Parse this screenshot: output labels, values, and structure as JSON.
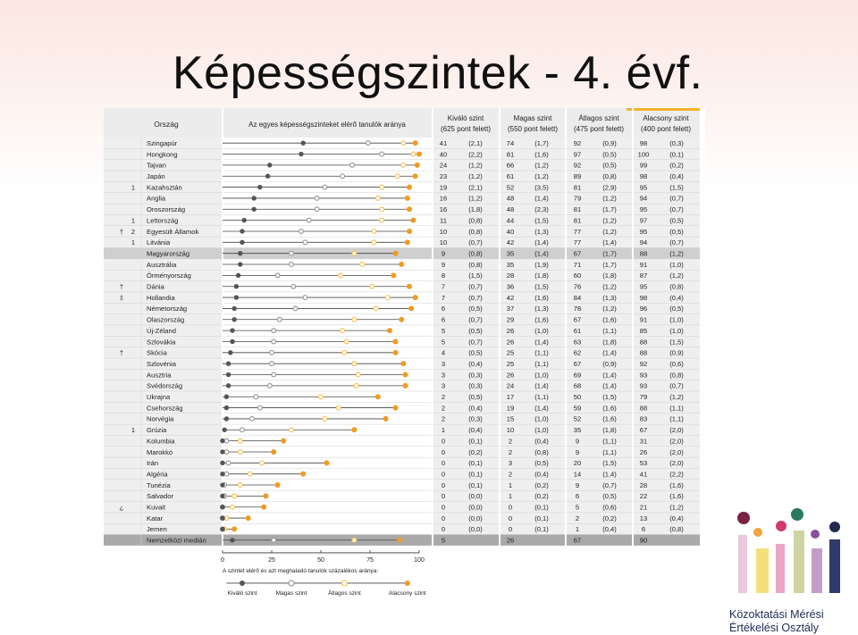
{
  "title": "Képességszintek - 4. évf.",
  "logo": {
    "line1": "Közoktatási Mérési",
    "line2": "Értékelési Osztály"
  },
  "headers": {
    "country": "Ország",
    "chart": "Az egyes képességszinteket elérő tanulók aránya",
    "kivalo": [
      "Kiváló szint",
      "(625 pont felett)"
    ],
    "magas": [
      "Magas szint",
      "(550 pont felett)"
    ],
    "atlagos": [
      "Átlagos szint",
      "(475 pont felett)"
    ],
    "alacsony": [
      "Alacsony szint",
      "(400 pont felett)"
    ]
  },
  "legend": {
    "title": "A szintet elérő és azt meghaladó tanulók százalékos aránya:",
    "items": [
      "Kiváló szint",
      "Magas szint",
      "Átlagos szint",
      "Alacsony szint"
    ]
  },
  "colors": {
    "kivalo": "#555555",
    "magas": "#9a9a9a",
    "atlagos": "#f6c35a",
    "alacsony": "#f39a1e",
    "highlight": "#cfcfcf",
    "header_bar": "#f5b32b"
  },
  "chart_data": {
    "type": "scatter",
    "xlim": [
      0,
      100
    ],
    "xticks": [
      "0",
      "25",
      "50",
      "75",
      "100"
    ],
    "series": [
      {
        "name": "Kiváló szint",
        "key": "k"
      },
      {
        "name": "Magas szint",
        "key": "m"
      },
      {
        "name": "Átlagos szint",
        "key": "a"
      },
      {
        "name": "Alacsony szint",
        "key": "l"
      }
    ],
    "rows": [
      {
        "mark1": "",
        "mark2": "",
        "country": "Szingapúr",
        "k": 41,
        "kse": "(2,1)",
        "m": 74,
        "mse": "(1,7)",
        "a": 92,
        "ase": "(0,9)",
        "l": 98,
        "lse": "(0,3)"
      },
      {
        "mark1": "",
        "mark2": "",
        "country": "Hongkong",
        "k": 40,
        "kse": "(2,2)",
        "m": 81,
        "mse": "(1,6)",
        "a": 97,
        "ase": "(0,5)",
        "l": 100,
        "lse": "(0,1)"
      },
      {
        "mark1": "",
        "mark2": "",
        "country": "Tajvan",
        "k": 24,
        "kse": "(1,2)",
        "m": 66,
        "mse": "(1,2)",
        "a": 92,
        "ase": "(0,5)",
        "l": 99,
        "lse": "(0,2)"
      },
      {
        "mark1": "",
        "mark2": "",
        "country": "Japán",
        "k": 23,
        "kse": "(1,2)",
        "m": 61,
        "mse": "(1,2)",
        "a": 89,
        "ase": "(0,8)",
        "l": 98,
        "lse": "(0,4)"
      },
      {
        "mark1": "1",
        "mark2": "",
        "country": "Kazahsztán",
        "k": 19,
        "kse": "(2,1)",
        "m": 52,
        "mse": "(3,5)",
        "a": 81,
        "ase": "(2,9)",
        "l": 95,
        "lse": "(1,5)"
      },
      {
        "mark1": "",
        "mark2": "",
        "country": "Anglia",
        "k": 16,
        "kse": "(1,2)",
        "m": 48,
        "mse": "(1,4)",
        "a": 79,
        "ase": "(1,2)",
        "l": 94,
        "lse": "(0,7)"
      },
      {
        "mark1": "",
        "mark2": "",
        "country": "Oroszország",
        "k": 16,
        "kse": "(1,8)",
        "m": 48,
        "mse": "(2,3)",
        "a": 81,
        "ase": "(1,7)",
        "l": 95,
        "lse": "(0,7)"
      },
      {
        "mark1": "1",
        "mark2": "",
        "country": "Lettország",
        "k": 11,
        "kse": "(0,8)",
        "m": 44,
        "mse": "(1,5)",
        "a": 81,
        "ase": "(1,2)",
        "l": 97,
        "lse": "(0,5)"
      },
      {
        "mark1": "2",
        "mark2": "†",
        "country": "Egyesült Államok",
        "k": 10,
        "kse": "(0,8)",
        "m": 40,
        "mse": "(1,3)",
        "a": 77,
        "ase": "(1,2)",
        "l": 95,
        "lse": "(0,5)"
      },
      {
        "mark1": "1",
        "mark2": "",
        "country": "Litvánia",
        "k": 10,
        "kse": "(0,7)",
        "m": 42,
        "mse": "(1,4)",
        "a": 77,
        "ase": "(1,4)",
        "l": 94,
        "lse": "(0,7)"
      },
      {
        "mark1": "",
        "mark2": "",
        "country": "Magyarország",
        "k": 9,
        "kse": "(0,8)",
        "m": 35,
        "mse": "(1,4)",
        "a": 67,
        "ase": "(1,7)",
        "l": 88,
        "lse": "(1,2)",
        "hl": true
      },
      {
        "mark1": "",
        "mark2": "",
        "country": "Ausztrália",
        "k": 9,
        "kse": "(0,8)",
        "m": 35,
        "mse": "(1,9)",
        "a": 71,
        "ase": "(1,7)",
        "l": 91,
        "lse": "(1,0)"
      },
      {
        "mark1": "",
        "mark2": "",
        "country": "Örményország",
        "k": 8,
        "kse": "(1,5)",
        "m": 28,
        "mse": "(1,8)",
        "a": 60,
        "ase": "(1,8)",
        "l": 87,
        "lse": "(1,2)"
      },
      {
        "mark1": "",
        "mark2": "†",
        "country": "Dánia",
        "k": 7,
        "kse": "(0,7)",
        "m": 36,
        "mse": "(1,5)",
        "a": 76,
        "ase": "(1,2)",
        "l": 95,
        "lse": "(0,8)"
      },
      {
        "mark1": "",
        "mark2": "‡",
        "country": "Hollandia",
        "k": 7,
        "kse": "(0,7)",
        "m": 42,
        "mse": "(1,6)",
        "a": 84,
        "ase": "(1,3)",
        "l": 98,
        "lse": "(0,4)"
      },
      {
        "mark1": "",
        "mark2": "",
        "country": "Németország",
        "k": 6,
        "kse": "(0,5)",
        "m": 37,
        "mse": "(1,3)",
        "a": 78,
        "ase": "(1,2)",
        "l": 96,
        "lse": "(0,5)"
      },
      {
        "mark1": "",
        "mark2": "",
        "country": "Olaszország",
        "k": 6,
        "kse": "(0,7)",
        "m": 29,
        "mse": "(1,6)",
        "a": 67,
        "ase": "(1,6)",
        "l": 91,
        "lse": "(1,0)"
      },
      {
        "mark1": "",
        "mark2": "",
        "country": "Új-Zéland",
        "k": 5,
        "kse": "(0,5)",
        "m": 26,
        "mse": "(1,0)",
        "a": 61,
        "ase": "(1,1)",
        "l": 85,
        "lse": "(1,0)"
      },
      {
        "mark1": "",
        "mark2": "",
        "country": "Szlovákia",
        "k": 5,
        "kse": "(0,7)",
        "m": 26,
        "mse": "(1,4)",
        "a": 63,
        "ase": "(1,8)",
        "l": 88,
        "lse": "(1,5)"
      },
      {
        "mark1": "",
        "mark2": "†",
        "country": "Skócia",
        "k": 4,
        "kse": "(0,5)",
        "m": 25,
        "mse": "(1,1)",
        "a": 62,
        "ase": "(1,4)",
        "l": 88,
        "lse": "(0,9)"
      },
      {
        "mark1": "",
        "mark2": "",
        "country": "Szlovénia",
        "k": 3,
        "kse": "(0,4)",
        "m": 25,
        "mse": "(1,1)",
        "a": 67,
        "ase": "(0,9)",
        "l": 92,
        "lse": "(0,6)"
      },
      {
        "mark1": "",
        "mark2": "",
        "country": "Ausztria",
        "k": 3,
        "kse": "(0,3)",
        "m": 26,
        "mse": "(1,0)",
        "a": 69,
        "ase": "(1,4)",
        "l": 93,
        "lse": "(0,8)"
      },
      {
        "mark1": "",
        "mark2": "",
        "country": "Svédország",
        "k": 3,
        "kse": "(0,3)",
        "m": 24,
        "mse": "(1,4)",
        "a": 68,
        "ase": "(1,4)",
        "l": 93,
        "lse": "(0,7)"
      },
      {
        "mark1": "",
        "mark2": "",
        "country": "Ukrajna",
        "k": 2,
        "kse": "(0,5)",
        "m": 17,
        "mse": "(1,1)",
        "a": 50,
        "ase": "(1,5)",
        "l": 79,
        "lse": "(1,2)"
      },
      {
        "mark1": "",
        "mark2": "",
        "country": "Csehország",
        "k": 2,
        "kse": "(0,4)",
        "m": 19,
        "mse": "(1,4)",
        "a": 59,
        "ase": "(1,6)",
        "l": 88,
        "lse": "(1,1)"
      },
      {
        "mark1": "",
        "mark2": "",
        "country": "Norvégia",
        "k": 2,
        "kse": "(0,3)",
        "m": 15,
        "mse": "(1,0)",
        "a": 52,
        "ase": "(1,6)",
        "l": 83,
        "lse": "(1,1)"
      },
      {
        "mark1": "1",
        "mark2": "",
        "country": "Grúzia",
        "k": 1,
        "kse": "(0,4)",
        "m": 10,
        "mse": "(1,0)",
        "a": 35,
        "ase": "(1,8)",
        "l": 67,
        "lse": "(2,0)"
      },
      {
        "mark1": "",
        "mark2": "",
        "country": "Kolumbia",
        "k": 0,
        "kse": "(0,1)",
        "m": 2,
        "mse": "(0,4)",
        "a": 9,
        "ase": "(1,1)",
        "l": 31,
        "lse": "(2,0)"
      },
      {
        "mark1": "",
        "mark2": "",
        "country": "Marokkó",
        "k": 0,
        "kse": "(0,2)",
        "m": 2,
        "mse": "(0,8)",
        "a": 9,
        "ase": "(1,1)",
        "l": 26,
        "lse": "(2,0)"
      },
      {
        "mark1": "",
        "mark2": "",
        "country": "Irán",
        "k": 0,
        "kse": "(0,1)",
        "m": 3,
        "mse": "(0,5)",
        "a": 20,
        "ase": "(1,5)",
        "l": 53,
        "lse": "(2,0)"
      },
      {
        "mark1": "",
        "mark2": "",
        "country": "Algéria",
        "k": 0,
        "kse": "(0,1)",
        "m": 2,
        "mse": "(0,4)",
        "a": 14,
        "ase": "(1,4)",
        "l": 41,
        "lse": "(2,2)"
      },
      {
        "mark1": "",
        "mark2": "",
        "country": "Tunézia",
        "k": 0,
        "kse": "(0,1)",
        "m": 1,
        "mse": "(0,2)",
        "a": 9,
        "ase": "(0,7)",
        "l": 28,
        "lse": "(1,6)"
      },
      {
        "mark1": "",
        "mark2": "",
        "country": "Salvador",
        "k": 0,
        "kse": "(0,0)",
        "m": 1,
        "mse": "(0,2)",
        "a": 6,
        "ase": "(0,5)",
        "l": 22,
        "lse": "(1,6)"
      },
      {
        "mark1": "",
        "mark2": "¿",
        "country": "Kuvait",
        "k": 0,
        "kse": "(0,0)",
        "m": 0,
        "mse": "(0,1)",
        "a": 5,
        "ase": "(0,6)",
        "l": 21,
        "lse": "(1,2)"
      },
      {
        "mark1": "",
        "mark2": "",
        "country": "Katar",
        "k": 0,
        "kse": "(0,0)",
        "m": 0,
        "mse": "(0,1)",
        "a": 2,
        "ase": "(0,2)",
        "l": 13,
        "lse": "(0,4)"
      },
      {
        "mark1": "",
        "mark2": "",
        "country": "Jemen",
        "k": 0,
        "kse": "(0,0)",
        "m": 0,
        "mse": "(0,1)",
        "a": 1,
        "ase": "(0,4)",
        "l": 6,
        "lse": "(0,8)"
      },
      {
        "mark1": "",
        "mark2": "",
        "country": "Nemzetközi medián",
        "k": 5,
        "kse": "",
        "m": 26,
        "mse": "",
        "a": 67,
        "ase": "",
        "l": 90,
        "lse": "",
        "median": true
      }
    ]
  }
}
